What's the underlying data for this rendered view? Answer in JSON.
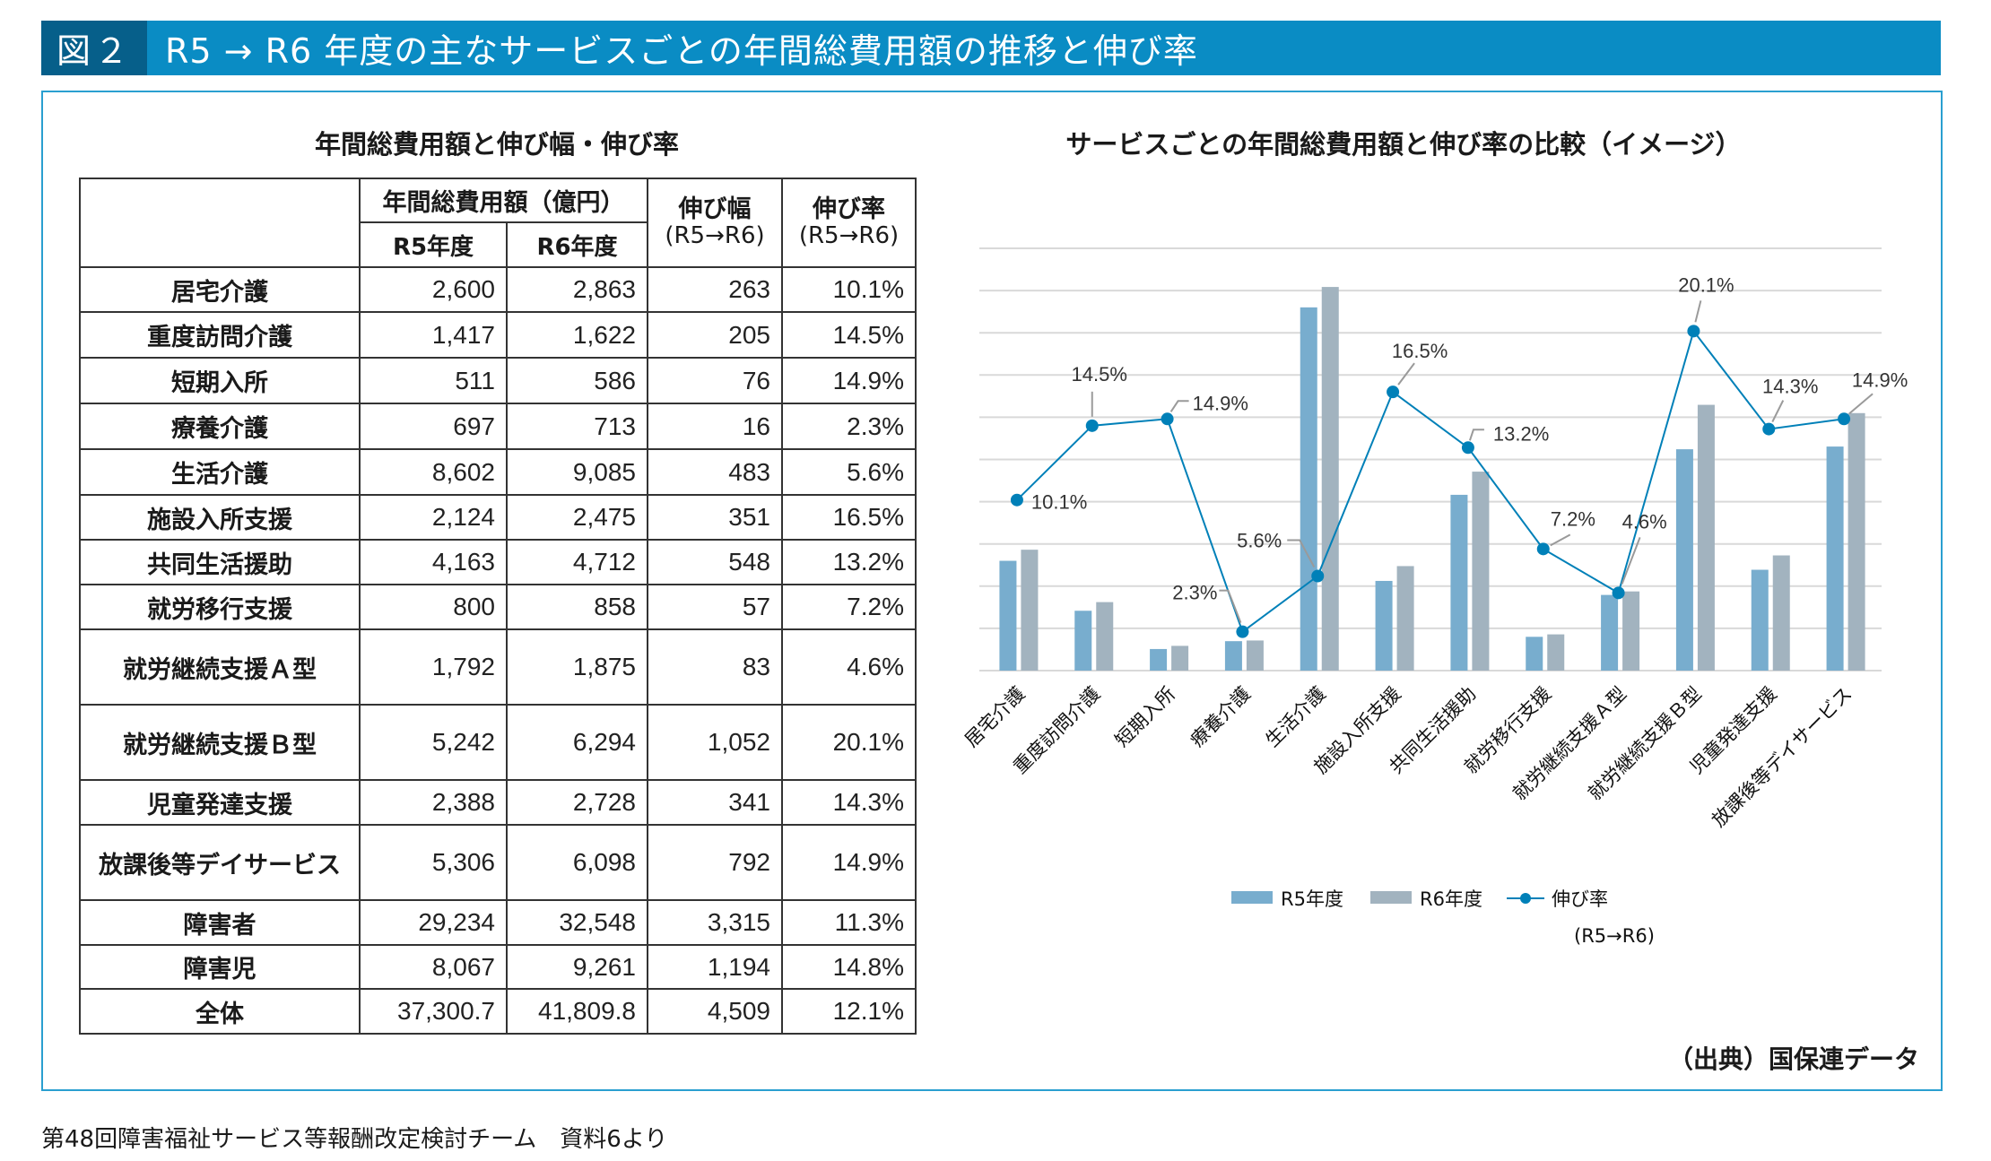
{
  "header": {
    "figure_no": "図２",
    "title": "R5 → R6 年度の主なサービスごとの年間総費用額の推移と伸び率"
  },
  "table": {
    "title": "年間総費用額と伸び幅・伸び率",
    "group_header": "年間総費用額（億円）",
    "col_r5": "R5年度",
    "col_r6": "R6年度",
    "col_diff": "伸び幅",
    "col_diff_sub": "(R5→R6)",
    "col_rate": "伸び率",
    "col_rate_sub": "(R5→R6)",
    "rows": [
      {
        "name": "居宅介護",
        "r5": "2,600",
        "r6": "2,863",
        "diff": "263",
        "rate": "10.1%"
      },
      {
        "name": "重度訪問介護",
        "r5": "1,417",
        "r6": "1,622",
        "diff": "205",
        "rate": "14.5%"
      },
      {
        "name": "短期入所",
        "r5": "511",
        "r6": "586",
        "diff": "76",
        "rate": "14.9%"
      },
      {
        "name": "療養介護",
        "r5": "697",
        "r6": "713",
        "diff": "16",
        "rate": "2.3%"
      },
      {
        "name": "生活介護",
        "r5": "8,602",
        "r6": "9,085",
        "diff": "483",
        "rate": "5.6%"
      },
      {
        "name": "施設入所支援",
        "r5": "2,124",
        "r6": "2,475",
        "diff": "351",
        "rate": "16.5%"
      },
      {
        "name": "共同生活援助",
        "r5": "4,163",
        "r6": "4,712",
        "diff": "548",
        "rate": "13.2%"
      },
      {
        "name": "就労移行支援",
        "r5": "800",
        "r6": "858",
        "diff": "57",
        "rate": "7.2%"
      },
      {
        "name": "就労継続支援Ａ型",
        "r5": "1,792",
        "r6": "1,875",
        "diff": "83",
        "rate": "4.6%"
      },
      {
        "name": "就労継続支援Ｂ型",
        "r5": "5,242",
        "r6": "6,294",
        "diff": "1,052",
        "rate": "20.1%"
      },
      {
        "name": "児童発達支援",
        "r5": "2,388",
        "r6": "2,728",
        "diff": "341",
        "rate": "14.3%"
      },
      {
        "name": "放課後等デイサービス",
        "r5": "5,306",
        "r6": "6,098",
        "diff": "792",
        "rate": "14.9%"
      },
      {
        "name": "障害者",
        "r5": "29,234",
        "r6": "32,548",
        "diff": "3,315",
        "rate": "11.3%"
      },
      {
        "name": "障害児",
        "r5": "8,067",
        "r6": "9,261",
        "diff": "1,194",
        "rate": "14.8%"
      },
      {
        "name": "全体",
        "r5": "37,300.7",
        "r6": "41,809.8",
        "diff": "4,509",
        "rate": "12.1%"
      }
    ]
  },
  "chart_data": {
    "type": "bar",
    "title": "サービスごとの年間総費用額と伸び率の比較（イメージ）",
    "xlabel": "",
    "ylabel": "",
    "categories": [
      "居宅介護",
      "重度訪問介護",
      "短期入所",
      "療養介護",
      "生活介護",
      "施設入所支援",
      "共同生活援助",
      "就労移行支援",
      "就労継続支援Ａ型",
      "就労継続支援Ｂ型",
      "児童発達支援",
      "放課後等デイサービス"
    ],
    "series": [
      {
        "name": "R5年度",
        "type": "bar",
        "axis": "left",
        "color": "#78adce",
        "values": [
          2600,
          1417,
          511,
          697,
          8602,
          2124,
          4163,
          800,
          1792,
          5242,
          2388,
          5306
        ]
      },
      {
        "name": "R6年度",
        "type": "bar",
        "axis": "left",
        "color": "#a2b3bf",
        "values": [
          2863,
          1622,
          586,
          713,
          9085,
          2475,
          4712,
          858,
          1875,
          6294,
          2728,
          6098
        ]
      },
      {
        "name": "伸び率",
        "name_sub": "(R5→R6)",
        "type": "line",
        "axis": "right",
        "color": "#0080b8",
        "values": [
          10.1,
          14.5,
          14.9,
          2.3,
          5.6,
          16.5,
          13.2,
          7.2,
          4.6,
          20.1,
          14.3,
          14.9
        ],
        "labels": [
          "10.1%",
          "14.5%",
          "14.9%",
          "2.3%",
          "5.6%",
          "16.5%",
          "13.2%",
          "7.2%",
          "4.6%",
          "20.1%",
          "14.3%",
          "14.9%"
        ]
      }
    ],
    "ylim": [
      0,
      10000
    ],
    "y2lim": [
      0,
      25
    ],
    "grid": true,
    "gridlines": 10,
    "axis_tick_labels_shown": false,
    "legend_position": "bottom",
    "gridline_color": "#d9d9d9"
  },
  "source": "（出典）国保連データ",
  "footnote": "第48回障害福祉サービス等報酬改定検討チーム　資料6より"
}
